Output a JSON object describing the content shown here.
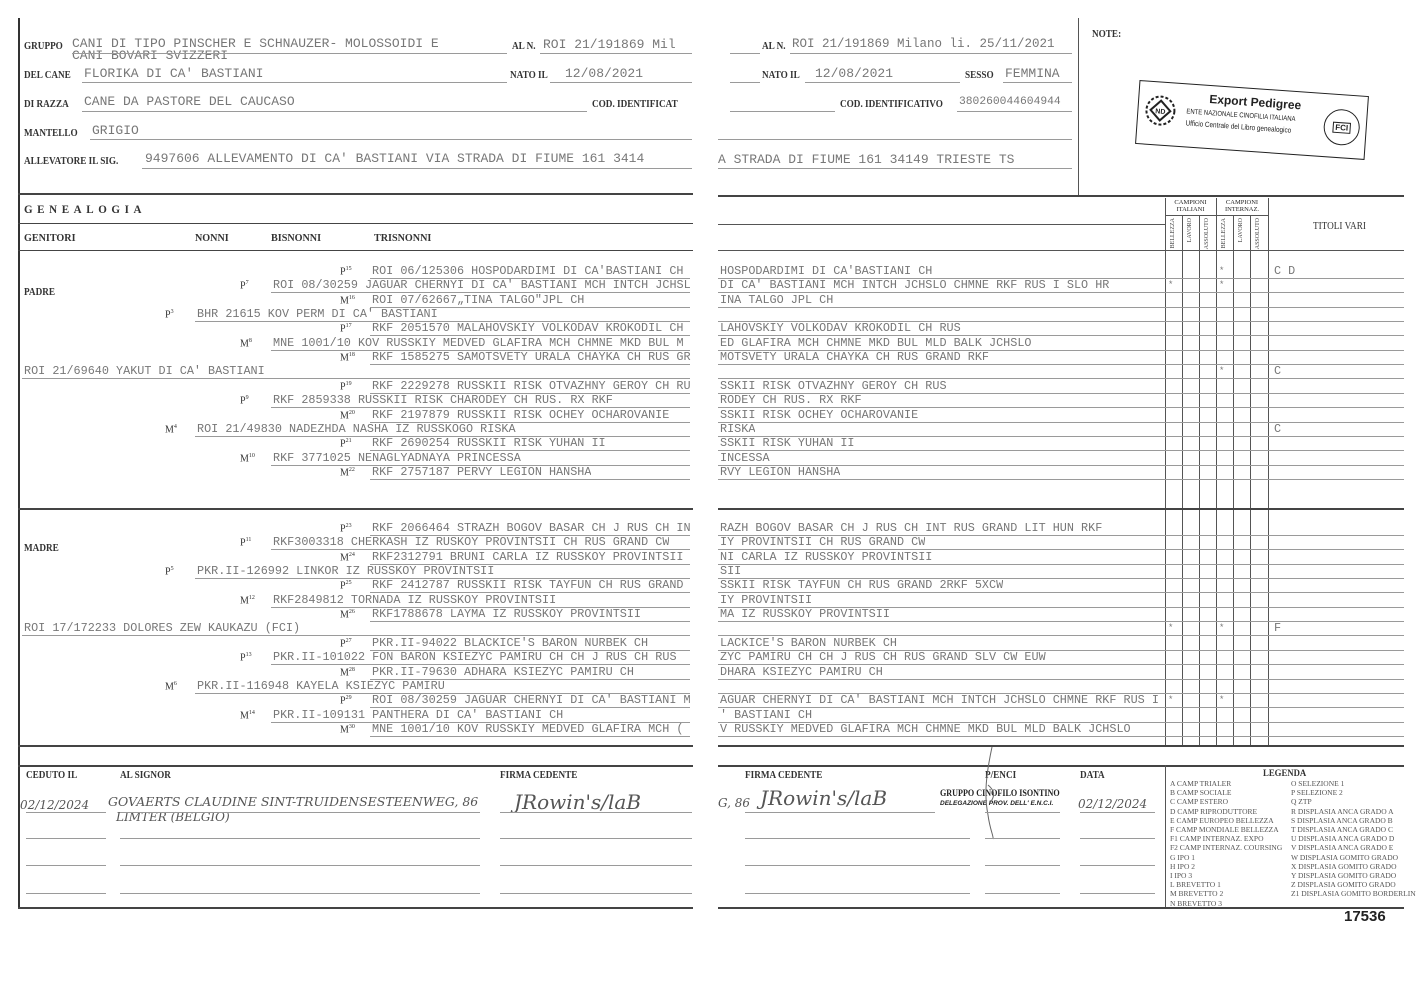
{
  "left_header": {
    "gruppo_label": "GRUPPO",
    "gruppo_line1": "CANI DI TIPO PINSCHER E SCHNAUZER- MOLOSSOIDI E",
    "gruppo_line2": "CANI BOVARI SVIZZERI",
    "al_n_label": "AL N.",
    "al_n_value": "ROI 21/191869  Mil",
    "del_cane_label": "DEL CANE",
    "del_cane_value": "FLORIKA DI CA' BASTIANI",
    "nato_label": "NATO IL",
    "nato_value": "12/08/2021",
    "razza_label": "DI RAZZA",
    "razza_value": "CANE DA PASTORE DEL CAUCASO",
    "cod_label": "COD. IDENTIFICAT",
    "mantello_label": "MANTELLO",
    "mantello_value": "GRIGIO",
    "allevatore_label": "ALLEVATORE IL SIG.",
    "allevatore_value": "9497606 ALLEVAMENTO DI CA' BASTIANI VIA STRADA DI FIUME 161 3414"
  },
  "right_header": {
    "al_n_label": "AL N.",
    "al_n_value": "ROI 21/191869  Milano li. 25/11/2021",
    "nato_label": "NATO IL",
    "nato_value": "12/08/2021",
    "sesso_label": "SESSO",
    "sesso_value": "FEMMINA",
    "cod_label": "COD. IDENTIFICATIVO",
    "cod_value": "380260044604944",
    "address_value": "A STRADA DI FIUME 161 34149 TRIESTE  TS",
    "note_label": "NOTE:"
  },
  "stamp": {
    "title": "Export Pedigree",
    "line1": "ENTE NAZIONALE CINOFILIA ITALIANA",
    "line2": "Ufficio Centrale del Libro genealogico",
    "logo_left": "ENCI",
    "logo_right": "FCI"
  },
  "genealogy": {
    "title": "GENEALOGIA",
    "col_genitori": "GENITORI",
    "col_nonni": "NONNI",
    "col_bisnonni": "BISNONNI",
    "col_trisnonni": "TRISNONNI",
    "campioni_italiani": "CAMPIONI ITALIANI",
    "campioni_internaz": "CAMPIONI INTERNAZ.",
    "sub_cols": [
      "BELLEZZA",
      "LAVORO",
      "ASSOLUTO",
      "BELLEZZA",
      "LAVORO",
      "ASSOLUTO"
    ],
    "titoli_vari": "TITOLI VARI",
    "sections": [
      {
        "label": "PADRE",
        "rows": [
          {
            "gen": "tris",
            "tag": "P",
            "num": "15",
            "text": "ROI 06/125306 HOSPODARDIMI DI CA'BASTIANI CH",
            "right": "HOSPODARDIMI DI CA'BASTIANI CH",
            "marks": [
              "",
              "",
              "",
              "*",
              "",
              ""
            ],
            "titoli": "C D"
          },
          {
            "gen": "bis",
            "tag": "P",
            "num": "7",
            "text": "ROI 08/30259 JAGUAR CHERNYI DI CA' BASTIANI MCH INTCH JCHSL",
            "right": "DI CA' BASTIANI MCH INTCH JCHSLO CHMNE RKF RUS I SLO HR",
            "marks": [
              "*",
              "",
              "",
              "*",
              "",
              ""
            ],
            "titoli": ""
          },
          {
            "gen": "tris",
            "tag": "M",
            "num": "16",
            "text": "ROI 07/62667„TINA TALGO\"JPL CH",
            "right": "INA TALGO JPL CH",
            "marks": [
              "",
              "",
              "",
              "",
              "",
              ""
            ],
            "titoli": ""
          },
          {
            "gen": "nonni",
            "tag": "P",
            "num": "3",
            "text": "BHR 21615 KOV PERM DI CA' BASTIANI",
            "right": "",
            "marks": [
              "",
              "",
              "",
              "",
              "",
              ""
            ],
            "titoli": ""
          },
          {
            "gen": "tris",
            "tag": "P",
            "num": "17",
            "text": "RKF 2051570 MALAHOVSKIY VOLKODAV KROKODIL CH",
            "right": "LAHOVSKIY VOLKODAV KROKODIL CH RUS",
            "marks": [
              "",
              "",
              "",
              "",
              "",
              ""
            ],
            "titoli": ""
          },
          {
            "gen": "bis",
            "tag": "M",
            "num": "8",
            "text": "MNE 1001/10 KOV RUSSKIY MEDVED GLAFIRA MCH  CHMNE MKD BUL M",
            "right": "ED GLAFIRA MCH  CHMNE MKD BUL MLD BALK JCHSLO",
            "marks": [
              "",
              "",
              "",
              "",
              "",
              ""
            ],
            "titoli": ""
          },
          {
            "gen": "tris",
            "tag": "M",
            "num": "18",
            "text": "RKF 1585275 SAMOTSVETY URALA CHAYKA CH RUS GR",
            "right": "MOTSVETY URALA CHAYKA CH RUS GRAND RKF",
            "marks": [
              "",
              "",
              "",
              "",
              "",
              ""
            ],
            "titoli": ""
          },
          {
            "gen": "parent",
            "tag": "",
            "num": "",
            "text": "ROI 21/69640 YAKUT DI CA' BASTIANI",
            "right": "",
            "marks": [
              "",
              "",
              "",
              "*",
              "",
              ""
            ],
            "titoli": "C"
          },
          {
            "gen": "tris",
            "tag": "P",
            "num": "19",
            "text": "RKF 2229278 RUSSKII RISK OTVAZHNY GEROY CH RU",
            "right": "SSKII RISK OTVAZHNY GEROY CH RUS",
            "marks": [
              "",
              "",
              "",
              "",
              "",
              ""
            ],
            "titoli": ""
          },
          {
            "gen": "bis",
            "tag": "P",
            "num": "9",
            "text": "RKF 2859338 RUSSKII RISK CHARODEY CH RUS. RX RKF",
            "right": "RODEY CH RUS. RX RKF",
            "marks": [
              "",
              "",
              "",
              "",
              "",
              ""
            ],
            "titoli": ""
          },
          {
            "gen": "tris",
            "tag": "M",
            "num": "20",
            "text": "RKF 2197879 RUSSKII RISK OCHEY OCHAROVANIE",
            "right": "SSKII RISK OCHEY OCHAROVANIE",
            "marks": [
              "",
              "",
              "",
              "",
              "",
              ""
            ],
            "titoli": ""
          },
          {
            "gen": "nonni",
            "tag": "M",
            "num": "4",
            "text": "ROI 21/49830 NADEZHDA NASHA IZ RUSSKOGO RISKA",
            "right": "RISKA",
            "marks": [
              "",
              "",
              "",
              "",
              "",
              ""
            ],
            "titoli": "C"
          },
          {
            "gen": "tris",
            "tag": "P",
            "num": "21",
            "text": "RKF 2690254 RUSSKII RISK YUHAN II",
            "right": "SSKII RISK YUHAN II",
            "marks": [
              "",
              "",
              "",
              "",
              "",
              ""
            ],
            "titoli": ""
          },
          {
            "gen": "bis",
            "tag": "M",
            "num": "10",
            "text": "RKF 3771025 NENAGLYADNAYA PRINCESSA",
            "right": "INCESSA",
            "marks": [
              "",
              "",
              "",
              "",
              "",
              ""
            ],
            "titoli": ""
          },
          {
            "gen": "tris",
            "tag": "M",
            "num": "22",
            "text": "RKF 2757187 PERVY LEGION HANSHA",
            "right": "RVY LEGION HANSHA",
            "marks": [
              "",
              "",
              "",
              "",
              "",
              ""
            ],
            "titoli": ""
          }
        ]
      },
      {
        "label": "MADRE",
        "rows": [
          {
            "gen": "tris",
            "tag": "P",
            "num": "23",
            "text": "RKF 2066464 STRAZH BOGOV BASAR CH J RUS CH IN",
            "right": "RAZH BOGOV BASAR CH J RUS CH INT RUS GRAND LIT HUN RKF",
            "marks": [
              "",
              "",
              "",
              "",
              "",
              ""
            ],
            "titoli": ""
          },
          {
            "gen": "bis",
            "tag": "P",
            "num": "11",
            "text": "RKF3003318 CHERKASH IZ RUSKOY PROVINTSII  CH RUS GRAND CW",
            "right": "IY PROVINTSII  CH RUS GRAND CW",
            "marks": [
              "",
              "",
              "",
              "",
              "",
              ""
            ],
            "titoli": ""
          },
          {
            "gen": "tris",
            "tag": "M",
            "num": "24",
            "text": "RKF2312791 BRUNI CARLA IZ RUSSKOY PROVINTSII",
            "right": "NI CARLA IZ RUSSKOY PROVINTSII",
            "marks": [
              "",
              "",
              "",
              "",
              "",
              ""
            ],
            "titoli": ""
          },
          {
            "gen": "nonni",
            "tag": "P",
            "num": "5",
            "text": "PKR.II-126992 LINKOR IZ RUSSKOY PROVINTSII",
            "right": "SII",
            "marks": [
              "",
              "",
              "",
              "",
              "",
              ""
            ],
            "titoli": ""
          },
          {
            "gen": "tris",
            "tag": "P",
            "num": "25",
            "text": "RKF 2412787 RUSSKII RISK TAYFUN CH RUS GRAND",
            "right": "SSKII RISK TAYFUN CH RUS GRAND 2RKF 5XCW",
            "marks": [
              "",
              "",
              "",
              "",
              "",
              ""
            ],
            "titoli": ""
          },
          {
            "gen": "bis",
            "tag": "M",
            "num": "12",
            "text": "RKF2849812 TORNADA IZ RUSSKOY PROVINTSII",
            "right": "IY PROVINTSII",
            "marks": [
              "",
              "",
              "",
              "",
              "",
              ""
            ],
            "titoli": ""
          },
          {
            "gen": "tris",
            "tag": "M",
            "num": "26",
            "text": "RKF1788678 LAYMA IZ RUSSKOY PROVINTSII",
            "right": "MA IZ RUSSKOY PROVINTSII",
            "marks": [
              "",
              "",
              "",
              "",
              "",
              ""
            ],
            "titoli": ""
          },
          {
            "gen": "parent",
            "tag": "",
            "num": "",
            "text": "ROI 17/172233 DOLORES ZEW KAUKAZU (FCI)",
            "right": "",
            "marks": [
              "*",
              "",
              "",
              "*",
              "",
              ""
            ],
            "titoli": "F"
          },
          {
            "gen": "tris",
            "tag": "P",
            "num": "27",
            "text": "PKR.II-94022 BLACKICE'S BARON NURBEK CH",
            "right": "LACKICE'S BARON NURBEK CH",
            "marks": [
              "",
              "",
              "",
              "",
              "",
              ""
            ],
            "titoli": ""
          },
          {
            "gen": "bis",
            "tag": "P",
            "num": "13",
            "text": "PKR.II-101022 FON BARON KSIEZYC PAMIRU CH  CH J RUS CH RUS",
            "right": "ZYC PAMIRU CH  CH J RUS CH RUS GRAND SLV CW EUW",
            "marks": [
              "",
              "",
              "",
              "",
              "",
              ""
            ],
            "titoli": ""
          },
          {
            "gen": "tris",
            "tag": "M",
            "num": "28",
            "text": "PKR.II-79630 ADHARA KSIEZYC PAMIRU CH",
            "right": "DHARA KSIEZYC PAMIRU CH",
            "marks": [
              "",
              "",
              "",
              "",
              "",
              ""
            ],
            "titoli": ""
          },
          {
            "gen": "nonni",
            "tag": "M",
            "num": "6",
            "text": "PKR.II-116948 KAYELA KSIEZYC PAMIRU",
            "right": "",
            "marks": [
              "",
              "",
              "",
              "",
              "",
              ""
            ],
            "titoli": ""
          },
          {
            "gen": "tris",
            "tag": "P",
            "num": "29",
            "text": "ROI 08/30259 JAGUAR CHERNYI DI CA' BASTIANI M",
            "right": "AGUAR CHERNYI DI CA' BASTIANI MCH INTCH JCHSLO CHMNE RKF RUS I",
            "marks": [
              "*",
              "",
              "",
              "*",
              "",
              ""
            ],
            "titoli": ""
          },
          {
            "gen": "bis",
            "tag": "M",
            "num": "14",
            "text": "PKR.II-109131 PANTHERA DI CA' BASTIANI  CH",
            "right": "' BASTIANI  CH",
            "marks": [
              "",
              "",
              "",
              "",
              "",
              ""
            ],
            "titoli": ""
          },
          {
            "gen": "tris",
            "tag": "M",
            "num": "30",
            "text": "MNE 1001/10 KOV RUSSKIY MEDVED GLAFIRA MCH  (",
            "right": "V RUSSKIY MEDVED GLAFIRA MCH  CHMNE MKD BUL MLD BALK JCHSLO",
            "marks": [
              "",
              "",
              "",
              "",
              "",
              ""
            ],
            "titoli": ""
          }
        ]
      }
    ]
  },
  "transfer": {
    "ceduto_label": "CEDUTO IL",
    "al_signor_label": "AL SIGNOR",
    "firma_cedente_label": "FIRMA CEDENTE",
    "enci_label": "P/ENCI",
    "data_label": "DATA",
    "ceduto_value": "02/12/2024",
    "signor_line1": "GOVAERTS CLAUDINE SINT-TRUIDENSESTEENWEG, 86",
    "signor_line2": "LIMTER (BELGIO)",
    "signature": "JRowin's/laB",
    "right_fragment": "G, 86",
    "enci_stamp_line1": "GRUPPO CINOFILO ISONTINO",
    "enci_stamp_line2": "DELEGAZIONE PROV. DELL' E.N.C.I.",
    "data_value": "02/12/2024"
  },
  "legend": {
    "title": "LEGENDA",
    "left": [
      "A  CAMP TRIALER",
      "B  CAMP SOCIALE",
      "C  CAMP ESTERO",
      "D  CAMP RIPRODUTTORE",
      "E  CAMP EUROPEO BELLEZZA",
      "F  CAMP MONDIALE BELLEZZA",
      "F1 CAMP INTERNAZ. EXPO",
      "F2 CAMP INTERNAZ. COURSING",
      "G  IPO 1",
      "H  IPO 2",
      "I  IPO 3",
      "L  BREVETTO 1",
      "M  BREVETTO 2",
      "N  BREVETTO 3"
    ],
    "right": [
      "O  SELEZIONE 1",
      "P  SELEZIONE 2",
      "Q  ZTP",
      "R  DISPLASIA ANCA GRADO A",
      "S  DISPLASIA ANCA GRADO B",
      "T  DISPLASIA ANCA GRADO C",
      "U  DISPLASIA ANCA GRADO D",
      "V  DISPLASIA ANCA GRADO E",
      "W  DISPLASIA GOMITO GRADO",
      "X  DISPLASIA GOMITO GRADO",
      "Y  DISPLASIA GOMITO GRADO",
      "Z  DISPLASIA GOMITO GRADO",
      "Z1 DISPLASIA GOMITO BORDERLINE"
    ]
  },
  "serial_number": "17536"
}
